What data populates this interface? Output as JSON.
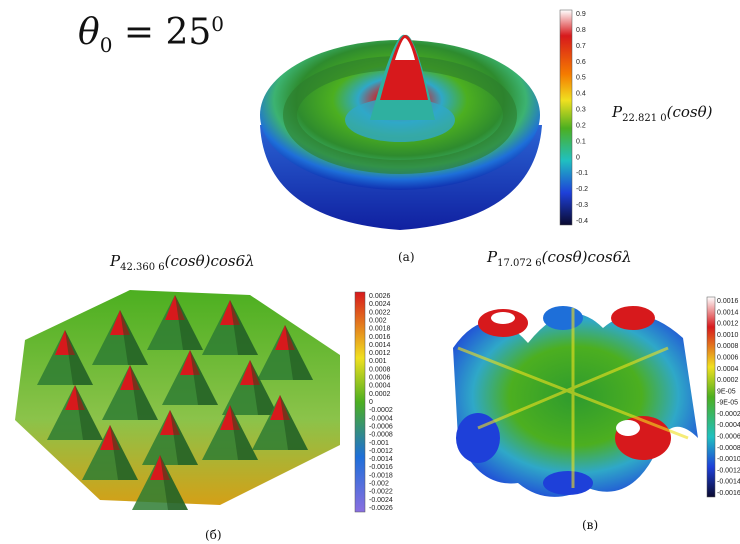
{
  "theta": {
    "symbol": "θ",
    "subscript": "0",
    "equals": " = 25",
    "superscript": "0"
  },
  "formulas": {
    "a": {
      "p": "P",
      "sub": "22.821 0",
      "arg": "(cosθ)",
      "tail": ""
    },
    "b": {
      "p": "P",
      "sub": "42.360 6",
      "arg": "(cosθ)",
      "tail": "cos6λ"
    },
    "c": {
      "p": "P",
      "sub": "17.072 6",
      "arg": "(cosθ)",
      "tail": "cos6λ"
    }
  },
  "captions": {
    "a": "(а)",
    "b": "(б)",
    "c": "(в)"
  },
  "colorbars": {
    "a": [
      "0.9",
      "0.8",
      "0.7",
      "0.6",
      "0.5",
      "0.4",
      "0.3",
      "0.2",
      "0.1",
      "0",
      "-0.1",
      "-0.2",
      "-0.3",
      "-0.4"
    ],
    "b": [
      "0.0026",
      "0.0024",
      "0.0022",
      "0.002",
      "0.0018",
      "0.0016",
      "0.0014",
      "0.0012",
      "0.001",
      "0.0008",
      "0.0006",
      "0.0004",
      "0.0002",
      "0",
      "-0.0002",
      "-0.0004",
      "-0.0006",
      "-0.0008",
      "-0.001",
      "-0.0012",
      "-0.0014",
      "-0.0016",
      "-0.0018",
      "-0.002",
      "-0.0022",
      "-0.0024",
      "-0.0026"
    ],
    "c": [
      "0.0016",
      "0.0014",
      "0.0012",
      "0.0010",
      "0.0008",
      "0.0006",
      "0.0004",
      "0.0002",
      "9E-05",
      "-9E-05",
      "-0.0002",
      "-0.0004",
      "-0.0006",
      "-0.0008",
      "-0.0010",
      "-0.0012",
      "-0.0014",
      "-0.0016"
    ]
  },
  "colors": {
    "jet_top": "#ffffff",
    "jet_high": "#d7191c",
    "jet_mid_high": "#f0c419",
    "jet_mid": "#4caf20",
    "jet_low": "#1e6fd9",
    "jet_bottom": "#0a0a30"
  }
}
